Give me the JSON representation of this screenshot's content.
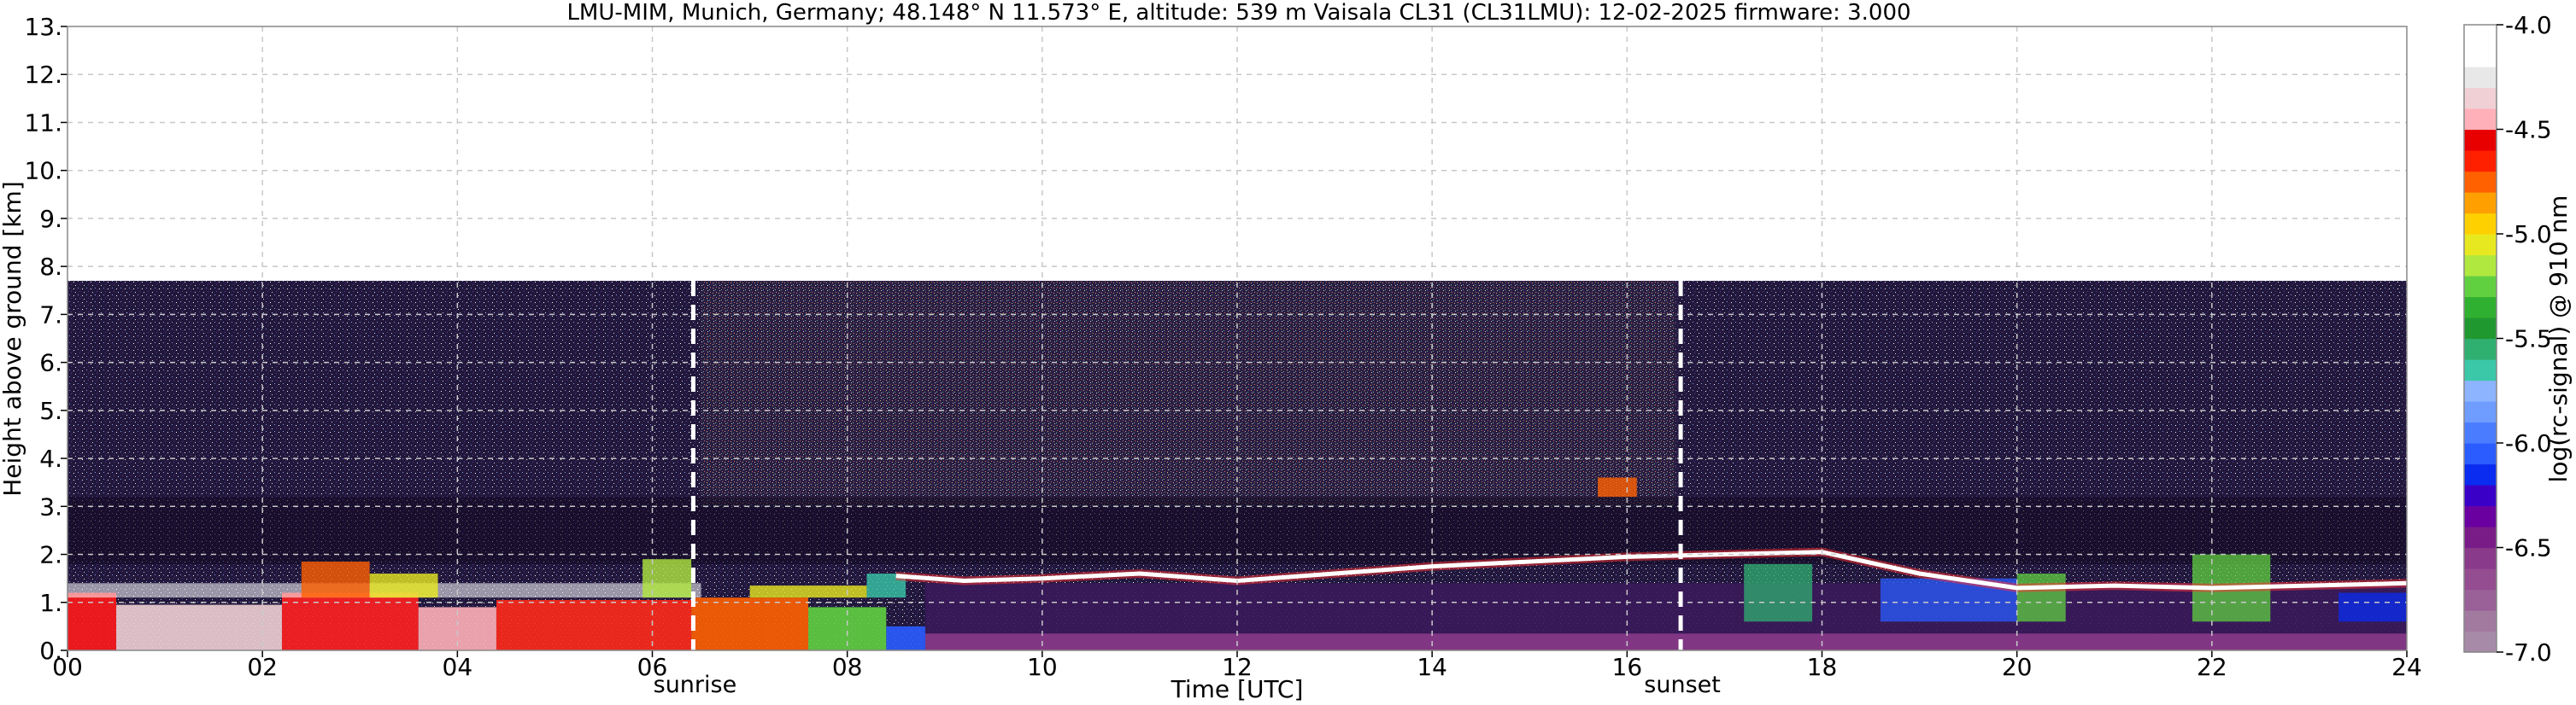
{
  "chart_data": {
    "type": "heatmap",
    "title": "LMU-MIM, Munich, Germany; 48.148° N 11.573° E, altitude: 539 m    Vaisala CL31 (CL31LMU): 12-02-2025    firmware: 3.000",
    "xlabel": "Time [UTC]",
    "ylabel": "Height above ground [km]",
    "xlim": [
      0,
      24
    ],
    "ylim": [
      0,
      13
    ],
    "x_ticks": [
      {
        "value": 0,
        "label": "00"
      },
      {
        "value": 2,
        "label": "02"
      },
      {
        "value": 4,
        "label": "04"
      },
      {
        "value": 6,
        "label": "06"
      },
      {
        "value": 8,
        "label": "08"
      },
      {
        "value": 10,
        "label": "10"
      },
      {
        "value": 12,
        "label": "12"
      },
      {
        "value": 14,
        "label": "14"
      },
      {
        "value": 16,
        "label": "16"
      },
      {
        "value": 18,
        "label": "18"
      },
      {
        "value": 20,
        "label": "20"
      },
      {
        "value": 22,
        "label": "22"
      },
      {
        "value": 24,
        "label": "24"
      }
    ],
    "y_ticks": [
      {
        "value": 0,
        "label": "0."
      },
      {
        "value": 1,
        "label": "1."
      },
      {
        "value": 2,
        "label": "2."
      },
      {
        "value": 3,
        "label": "3."
      },
      {
        "value": 4,
        "label": "4."
      },
      {
        "value": 5,
        "label": "5."
      },
      {
        "value": 6,
        "label": "6."
      },
      {
        "value": 7,
        "label": "7."
      },
      {
        "value": 8,
        "label": "8."
      },
      {
        "value": 9,
        "label": "9."
      },
      {
        "value": 10,
        "label": "10."
      },
      {
        "value": 11,
        "label": "11."
      },
      {
        "value": 12,
        "label": "12."
      },
      {
        "value": 13,
        "label": "13."
      }
    ],
    "grid": true,
    "measurement_top_km": 7.7,
    "annotations": [
      {
        "label": "sunrise",
        "x": 6.42
      },
      {
        "label": "sunset",
        "x": 16.55
      }
    ],
    "cloud_base_trace": [
      {
        "x": 8.5,
        "y": 1.55
      },
      {
        "x": 9.2,
        "y": 1.45
      },
      {
        "x": 10.0,
        "y": 1.5
      },
      {
        "x": 11.0,
        "y": 1.6
      },
      {
        "x": 12.0,
        "y": 1.45
      },
      {
        "x": 13.0,
        "y": 1.6
      },
      {
        "x": 14.0,
        "y": 1.75
      },
      {
        "x": 15.0,
        "y": 1.85
      },
      {
        "x": 16.0,
        "y": 1.95
      },
      {
        "x": 17.0,
        "y": 2.0
      },
      {
        "x": 18.0,
        "y": 2.05
      },
      {
        "x": 19.0,
        "y": 1.6
      },
      {
        "x": 20.0,
        "y": 1.3
      },
      {
        "x": 21.0,
        "y": 1.35
      },
      {
        "x": 22.0,
        "y": 1.3
      },
      {
        "x": 23.0,
        "y": 1.35
      },
      {
        "x": 24.0,
        "y": 1.4
      }
    ],
    "colorbar": {
      "label": "log(rc-signal) @ 910 nm",
      "range": [
        -7.0,
        -4.0
      ],
      "ticks": [
        {
          "value": -4.0,
          "label": "-4.0"
        },
        {
          "value": -4.5,
          "label": "-4.5"
        },
        {
          "value": -5.0,
          "label": "-5.0"
        },
        {
          "value": -5.5,
          "label": "-5.5"
        },
        {
          "value": -6.0,
          "label": "-6.0"
        },
        {
          "value": -6.5,
          "label": "-6.5"
        },
        {
          "value": -7.0,
          "label": "-7.0"
        }
      ],
      "colors": [
        "#a78aa8",
        "#a27aa0",
        "#9a6098",
        "#944d90",
        "#8a3a8a",
        "#7a1c88",
        "#6a00a0",
        "#3a00c8",
        "#0a2cf0",
        "#2a5cff",
        "#4a7cff",
        "#6e9cff",
        "#8cb4ff",
        "#3ac8a8",
        "#30b070",
        "#209830",
        "#30b030",
        "#60d040",
        "#b0e840",
        "#e8e820",
        "#ffd000",
        "#ffa000",
        "#ff6000",
        "#ff2000",
        "#e80000",
        "#ffb0b8",
        "#f0d0d4",
        "#e8e8e8",
        "#ffffff",
        "#ffffff"
      ]
    }
  }
}
